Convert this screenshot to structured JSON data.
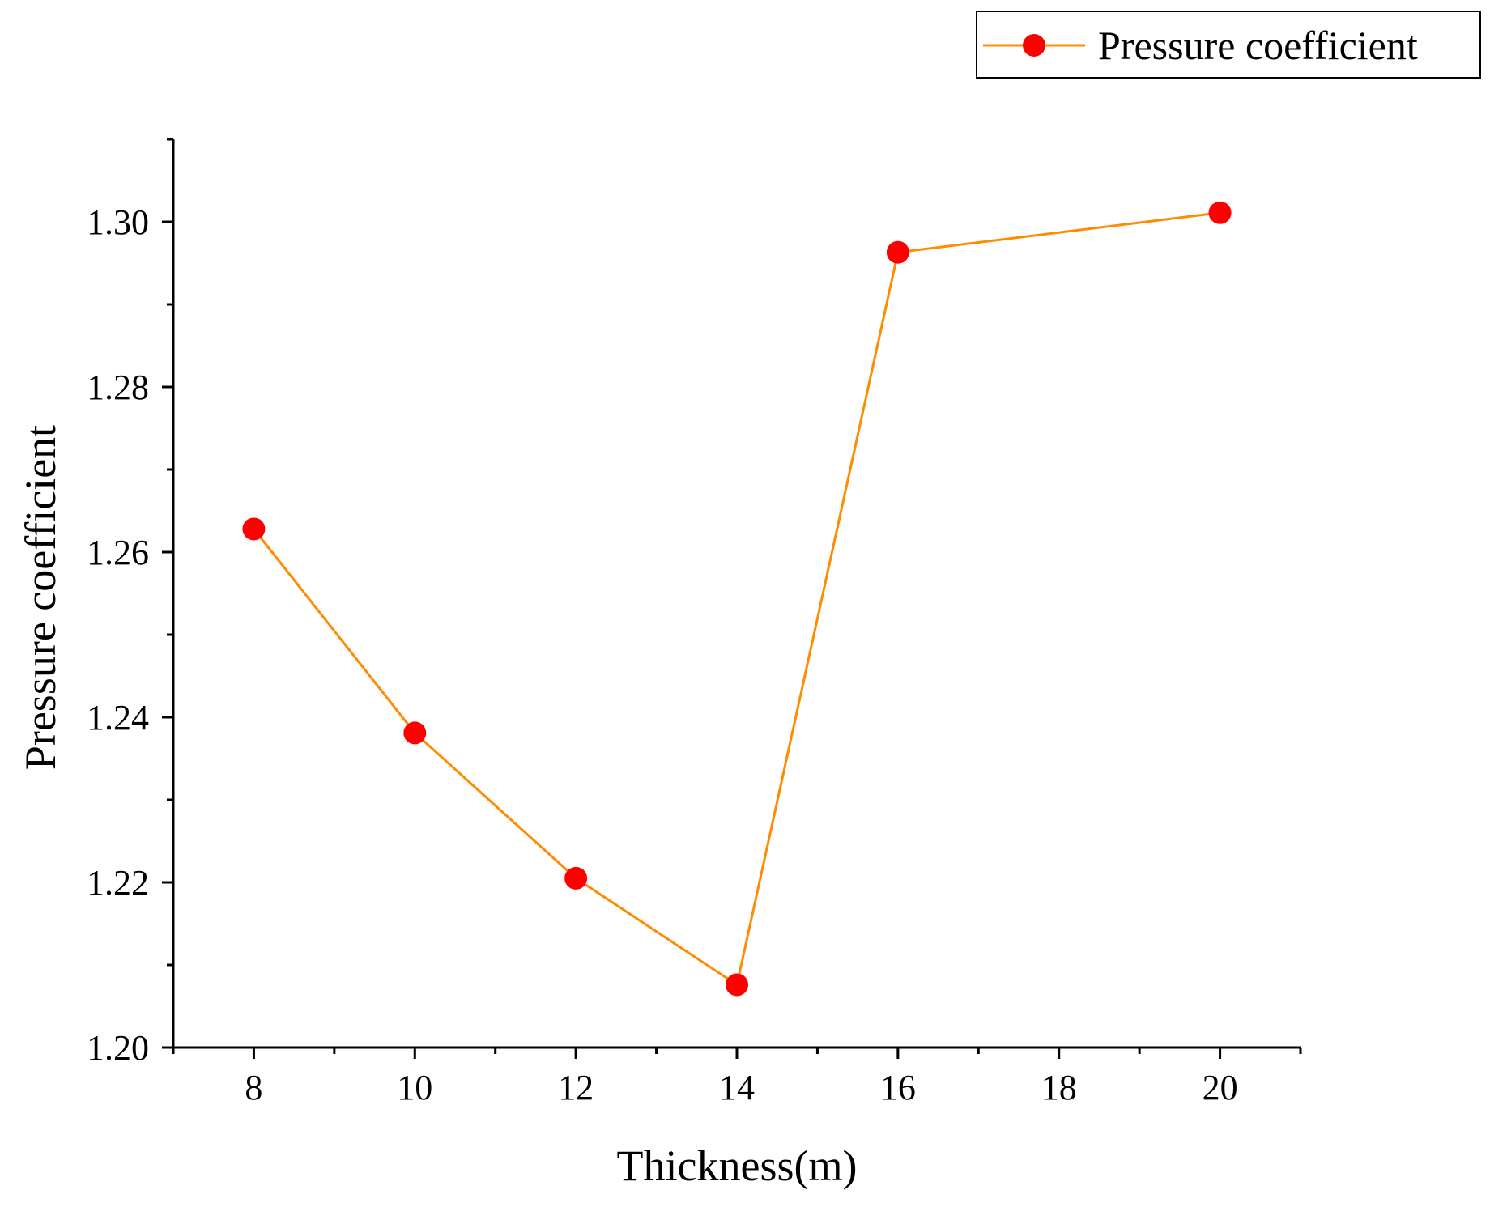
{
  "chart_data": {
    "type": "line",
    "title": "",
    "xlabel": "Thickness(m)",
    "ylabel": "Pressure coefficient",
    "xlim": [
      7,
      21
    ],
    "ylim": [
      1.2,
      1.31
    ],
    "x_ticks": [
      8,
      10,
      12,
      14,
      16,
      18,
      20
    ],
    "x_tick_labels": [
      "8",
      "10",
      "12",
      "14",
      "16",
      "18",
      "20"
    ],
    "x_minor_ticks": [
      7,
      9,
      11,
      13,
      15,
      17,
      19,
      21
    ],
    "y_ticks": [
      1.2,
      1.22,
      1.24,
      1.26,
      1.28,
      1.3
    ],
    "y_tick_labels": [
      "1.20",
      "1.22",
      "1.24",
      "1.26",
      "1.28",
      "1.30"
    ],
    "y_minor_ticks": [
      1.21,
      1.23,
      1.25,
      1.27,
      1.29,
      1.31
    ],
    "grid": false,
    "legend_position": "top-right",
    "series": [
      {
        "name": "Pressure coefficient",
        "line_color": "#FF8C00",
        "marker_color": "#FF0000",
        "x": [
          8,
          10,
          12,
          14,
          16,
          20
        ],
        "values": [
          1.2628,
          1.2381,
          1.2205,
          1.2076,
          1.2963,
          1.3011
        ]
      }
    ]
  }
}
